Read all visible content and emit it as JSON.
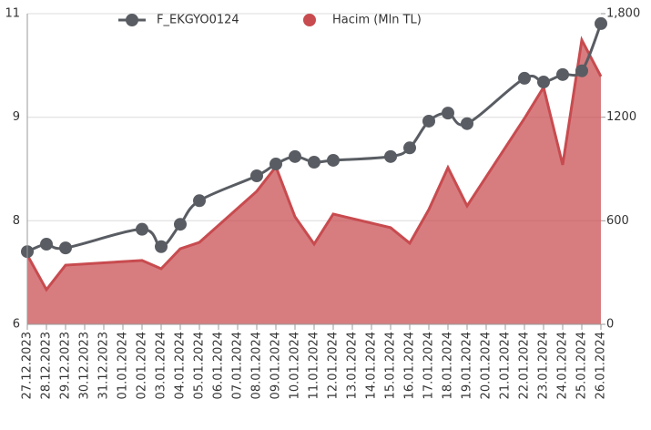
{
  "chart_data": {
    "type": "line_area",
    "categories": [
      "27.12.2023",
      "28.12.2023",
      "29.12.2023",
      "30.12.2023",
      "31.12.2023",
      "01.01.2024",
      "02.01.2024",
      "03.01.2024",
      "04.01.2024",
      "05.01.2024",
      "06.01.2024",
      "07.01.2024",
      "08.01.2024",
      "09.01.2024",
      "10.01.2024",
      "11.01.2024",
      "12.01.2024",
      "13.01.2024",
      "14.01.2024",
      "15.01.2024",
      "16.01.2024",
      "17.01.2024",
      "18.01.2024",
      "19.01.2024",
      "20.01.2024",
      "21.01.2024",
      "22.01.2024",
      "23.01.2024",
      "24.01.2024",
      "25.01.2024",
      "26.01.2024"
    ],
    "series": [
      {
        "name": "F_EKGYO0124",
        "kind": "line",
        "color": "#595d63",
        "axis": "y",
        "values": [
          7.17,
          7.29,
          7.23,
          null,
          null,
          null,
          7.53,
          7.25,
          7.61,
          7.99,
          null,
          null,
          8.39,
          8.58,
          8.7,
          8.61,
          8.64,
          null,
          null,
          8.7,
          8.84,
          9.27,
          9.4,
          9.23,
          null,
          null,
          9.96,
          9.9,
          10.02,
          10.08,
          10.84
        ]
      },
      {
        "name": "Hacim (Mln TL)",
        "kind": "area",
        "color": "#c84b4f",
        "axis": "y2",
        "values": [
          401,
          201,
          343,
          null,
          null,
          null,
          370,
          322,
          438,
          475,
          null,
          null,
          771,
          913,
          623,
          465,
          639,
          null,
          null,
          560,
          470,
          665,
          908,
          686,
          null,
          null,
          1193,
          1373,
          924,
          1647,
          1436
        ]
      }
    ],
    "connect_nulls": true,
    "ylim": [
      6,
      11
    ],
    "yticks": [
      6,
      {
        "value": 7.667,
        "label": "8"
      },
      {
        "value": 9.333,
        "label": "9"
      },
      11
    ],
    "y2lim": [
      0,
      1800
    ],
    "y2ticks": [
      0,
      600,
      1200,
      {
        "value": 1800,
        "label": "1,800"
      }
    ],
    "grid": true
  }
}
